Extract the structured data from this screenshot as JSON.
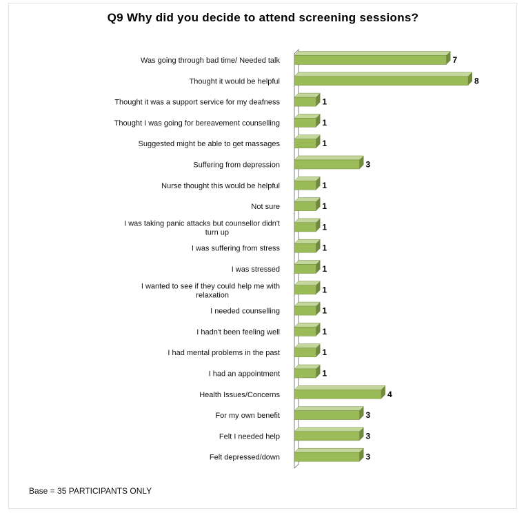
{
  "chart_data": {
    "type": "bar",
    "orientation": "horizontal",
    "title": "Q9  Why did you decide to attend screening sessions?",
    "footnote": "Base = 35 PARTICIPANTS ONLY",
    "categories": [
      "Was going through bad time/ Needed talk",
      "Thought it would be helpful",
      "Thought it was a support service for my deafness",
      "Thought I was going for  bereavement counselling",
      "Suggested might be able to get massages",
      "Suffering from depression",
      "Nurse thought this would be helpful",
      "Not sure",
      "I was taking panic attacks but counsellor didn't turn up",
      "I was suffering from stress",
      "I was stressed",
      "I wanted to see if they could help me with relaxation",
      "I needed counselling",
      "I hadn't been feeling well",
      "I had mental problems in the past",
      "I had an appointment",
      "Health Issues/Concerns",
      "For my own benefit",
      "Felt I needed help",
      "Felt depressed/down"
    ],
    "values": [
      7,
      8,
      1,
      1,
      1,
      3,
      1,
      1,
      1,
      1,
      1,
      1,
      1,
      1,
      1,
      1,
      4,
      3,
      3,
      3
    ],
    "xlim": [
      0,
      8
    ],
    "data_labels": true,
    "grid": false,
    "legend": "none",
    "colors": {
      "bar_face": "#9bbb59",
      "bar_side": "#71893f",
      "bar_top": "#c3d69b",
      "wall": "#7f7f7f"
    }
  }
}
